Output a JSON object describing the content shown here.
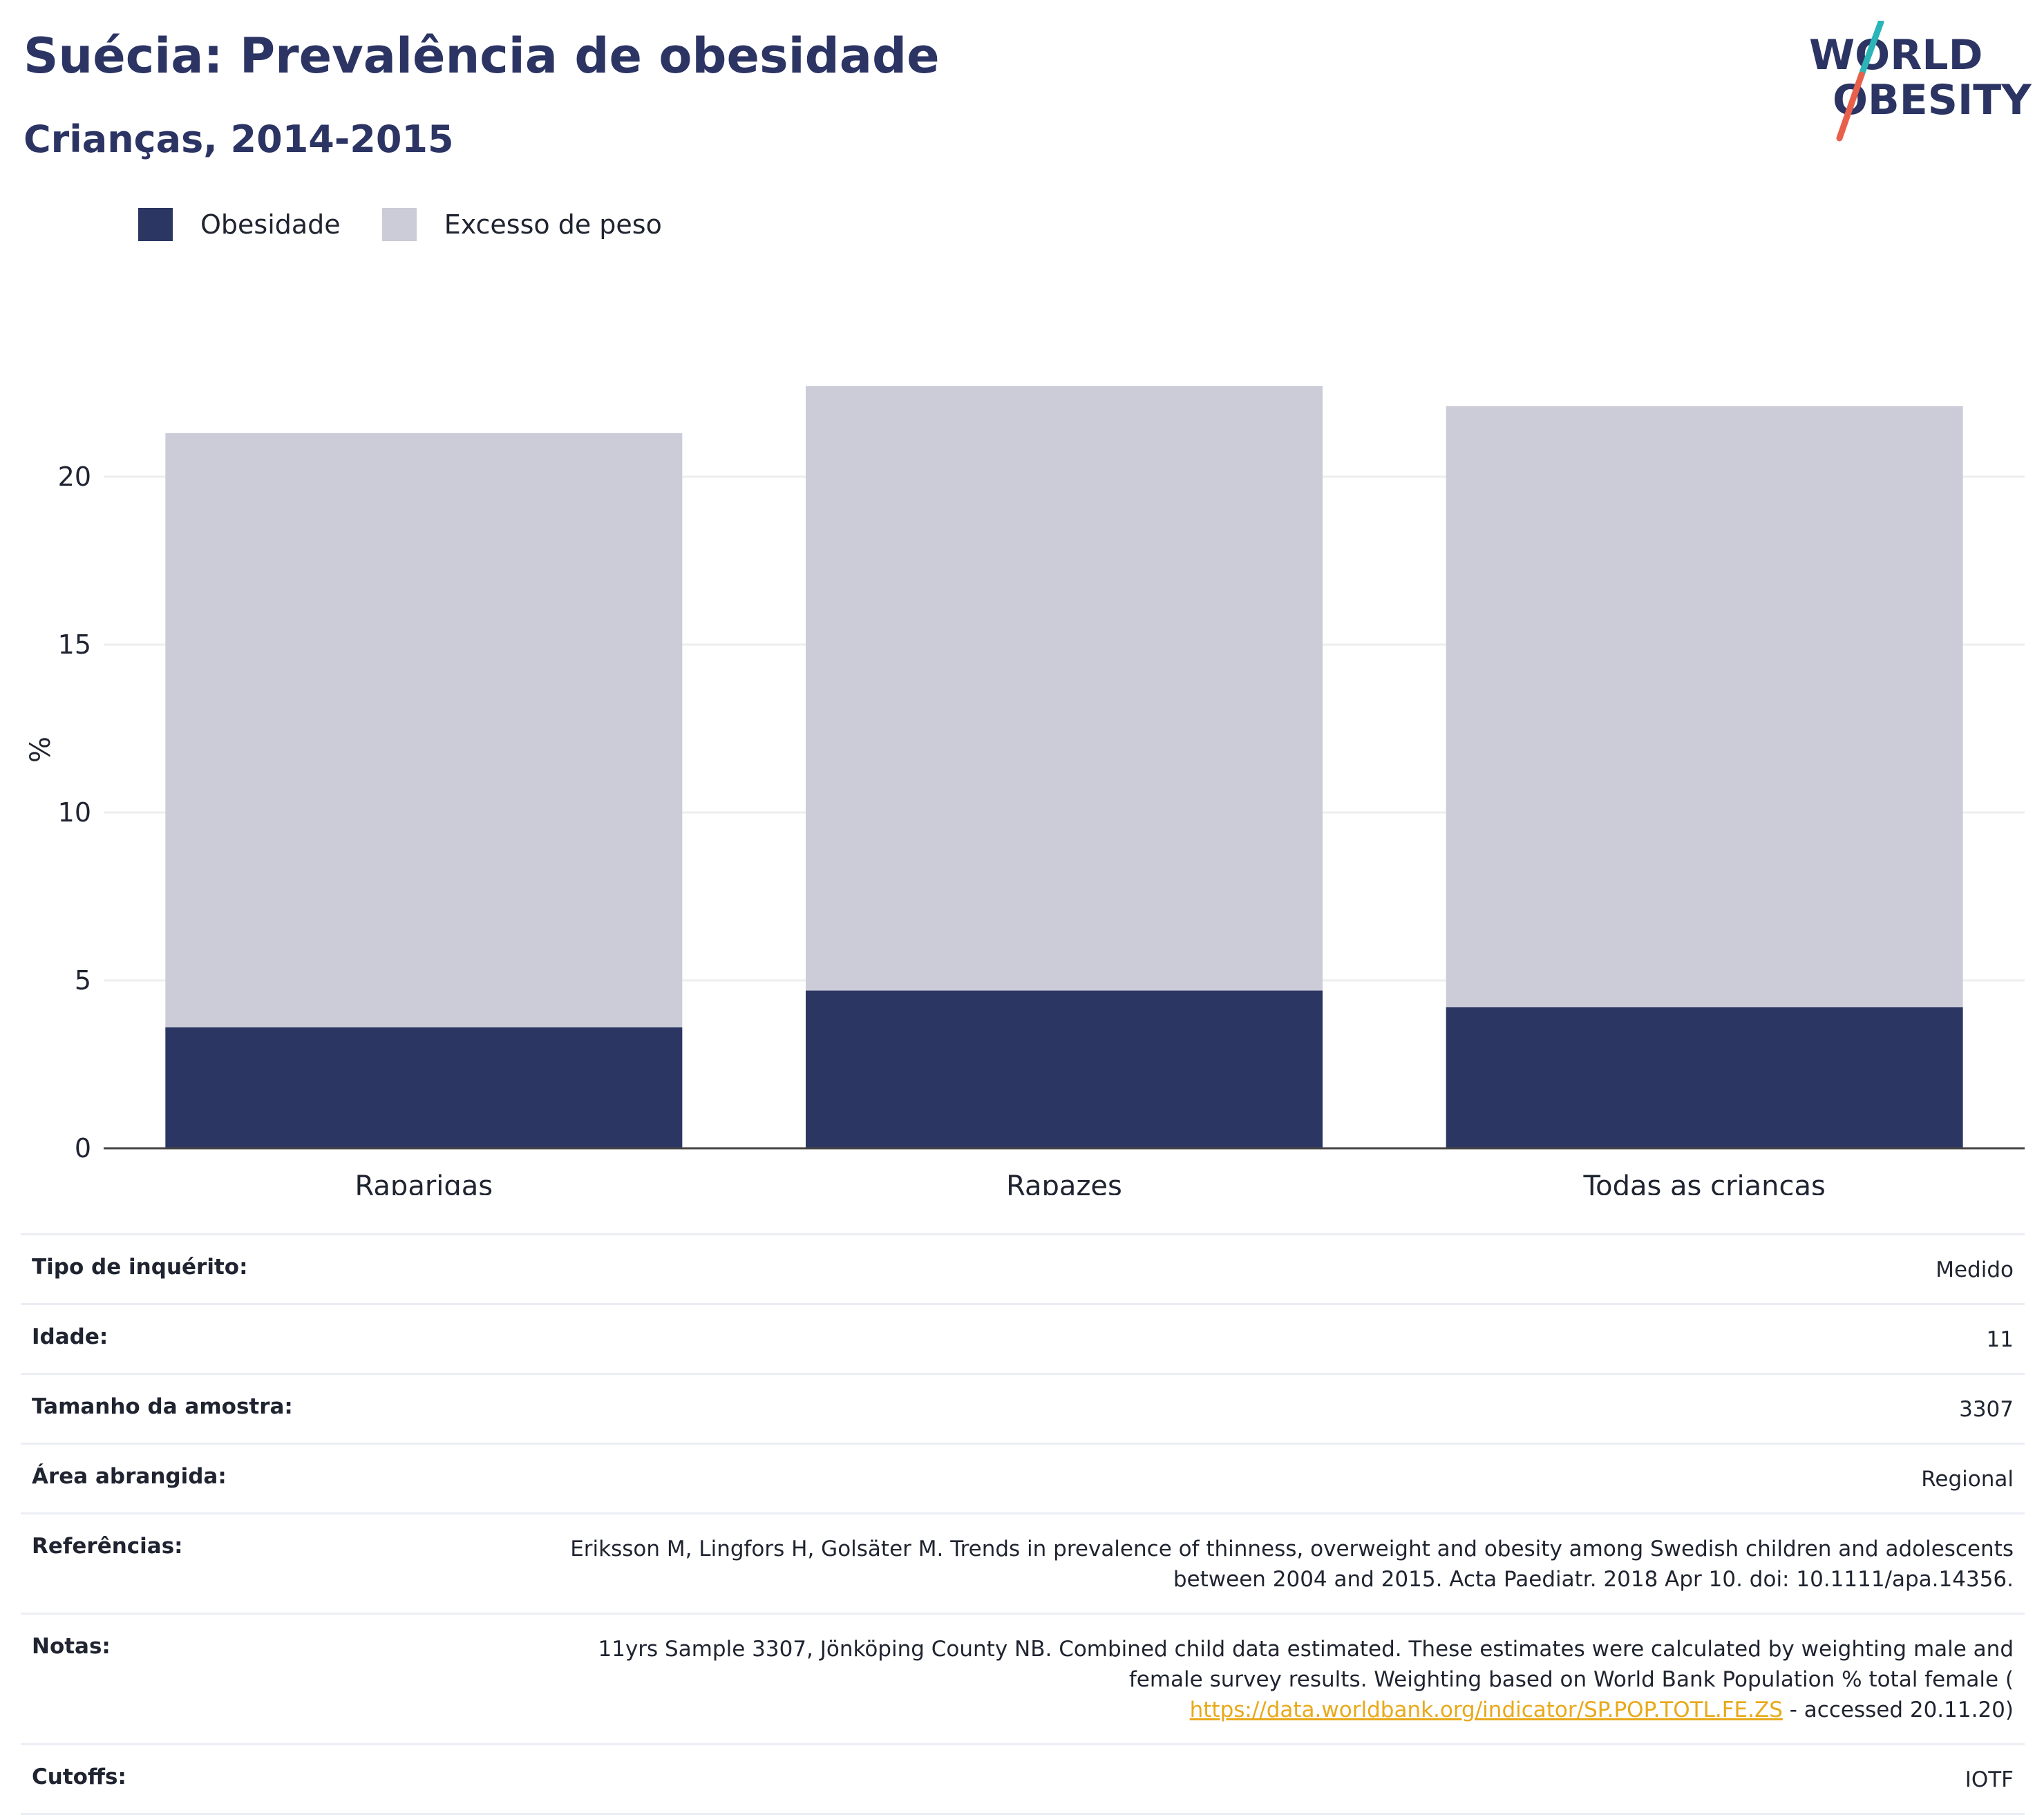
{
  "header": {
    "title": "Suécia: Prevalência de obesidade",
    "subtitle": "Crianças, 2014-2015"
  },
  "logo": {
    "line1": "WORLD",
    "line2": "OBESITY",
    "colors": {
      "text": "#2b3463",
      "slash_top": "#2bb5b8",
      "slash_bottom": "#e8604c"
    }
  },
  "colors": {
    "obesity": "#2b3663",
    "overweight": "#cbccd8",
    "grid": "#eeeeee",
    "axis": "#444444"
  },
  "chart_data": {
    "type": "bar",
    "stacked": true,
    "categories": [
      "Raparigas",
      "Rapazes",
      "Todas as crianças"
    ],
    "series": [
      {
        "name": "Obesidade",
        "values": [
          3.6,
          4.7,
          4.2
        ]
      },
      {
        "name": "Excesso de peso",
        "values": [
          17.7,
          18.0,
          17.9
        ]
      }
    ],
    "totals": [
      21.3,
      22.7,
      22.1
    ],
    "ylabel": "%",
    "yticks": [
      0,
      5,
      10,
      15,
      20
    ],
    "ylim": [
      0,
      24
    ],
    "grid": true,
    "legend_position": "top-left"
  },
  "info": {
    "rows": [
      {
        "label": "Tipo de inquérito:",
        "value": "Medido"
      },
      {
        "label": "Idade:",
        "value": "11"
      },
      {
        "label": "Tamanho da amostra:",
        "value": "3307"
      },
      {
        "label": "Área abrangida:",
        "value": "Regional"
      },
      {
        "label": "Referências:",
        "value_line1": "Eriksson M, Lingfors H, Golsäter M. Trends in prevalence of thinness, overweight and obesity among Swedish children and adolescents",
        "value_line2": "between 2004 and 2015. Acta Paediatr. 2018 Apr 10. doi: 10.1111/apa.14356."
      },
      {
        "label": "Notas:",
        "value_line1": "11yrs Sample 3307, Jönköping County NB. Combined child data estimated. These estimates were calculated by weighting male and",
        "value_line2": "female survey results. Weighting based on World Bank Population % total female (",
        "link": "https://data.worldbank.org/indicator/SP.POP.TOTL.FE.ZS",
        "value_tail": " - accessed 20.11.20)"
      },
      {
        "label": "Cutoffs:",
        "value": "IOTF"
      }
    ]
  }
}
